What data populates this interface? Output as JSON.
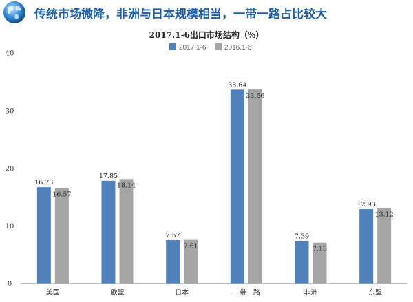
{
  "header": {
    "headline": "传统市场微降，非洲与日本规模相当，一带一路占比较大",
    "icon": "globe-icon"
  },
  "colors": {
    "headline": "#1f5fa8",
    "series_2017": "#4f81bd",
    "series_2016": "#a5a5a5"
  },
  "chart_data": {
    "type": "bar",
    "title": "2017.1-6出口市场结构（%）",
    "xlabel": "",
    "ylabel": "",
    "categories": [
      "美国",
      "欧盟",
      "日本",
      "一带一路",
      "非洲",
      "东盟"
    ],
    "series": [
      {
        "name": "2017.1-6",
        "values": [
          16.73,
          17.85,
          7.57,
          33.64,
          7.39,
          12.93
        ]
      },
      {
        "name": "2016.1-6",
        "values": [
          16.57,
          18.14,
          7.61,
          33.66,
          7.13,
          13.12
        ]
      }
    ],
    "ylim": [
      0,
      40
    ],
    "yticks": [
      0,
      10,
      20,
      30,
      40
    ],
    "grid": false,
    "legend_position": "top"
  }
}
